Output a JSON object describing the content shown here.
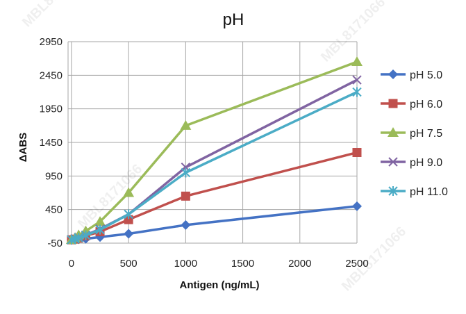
{
  "chart_data": {
    "type": "line",
    "title": "pH",
    "xlabel": "Antigen (ng/mL)",
    "ylabel": "ΔABS",
    "xlim": [
      -30,
      2500
    ],
    "ylim": [
      -50,
      2950
    ],
    "xticks": [
      0,
      500,
      1000,
      1500,
      2000,
      2500
    ],
    "yticks": [
      -50,
      450,
      950,
      1450,
      1950,
      2450,
      2950
    ],
    "grid": "vertical and horizontal",
    "legend": "right",
    "x": [
      0,
      31.25,
      62.5,
      125,
      250,
      500,
      1000,
      2500
    ],
    "series": [
      {
        "name": "pH 5.0",
        "marker": "diamond",
        "color": "#4472C4",
        "values": [
          0,
          2,
          8,
          15,
          40,
          90,
          220,
          500
        ]
      },
      {
        "name": "pH 6.0",
        "marker": "square",
        "color": "#C0504D",
        "values": [
          0,
          10,
          25,
          60,
          120,
          300,
          650,
          1300
        ]
      },
      {
        "name": "pH 7.5",
        "marker": "triangle",
        "color": "#9BBB59",
        "values": [
          0,
          30,
          70,
          130,
          270,
          700,
          1700,
          2650
        ]
      },
      {
        "name": "pH 9.0",
        "marker": "x",
        "color": "#8064A2",
        "values": [
          0,
          15,
          35,
          70,
          160,
          380,
          1080,
          2380
        ]
      },
      {
        "name": "pH 11.0",
        "marker": "star",
        "color": "#4BACC6",
        "values": [
          0,
          12,
          30,
          65,
          150,
          380,
          1000,
          2200
        ]
      }
    ]
  },
  "watermark": "MBL8171066"
}
